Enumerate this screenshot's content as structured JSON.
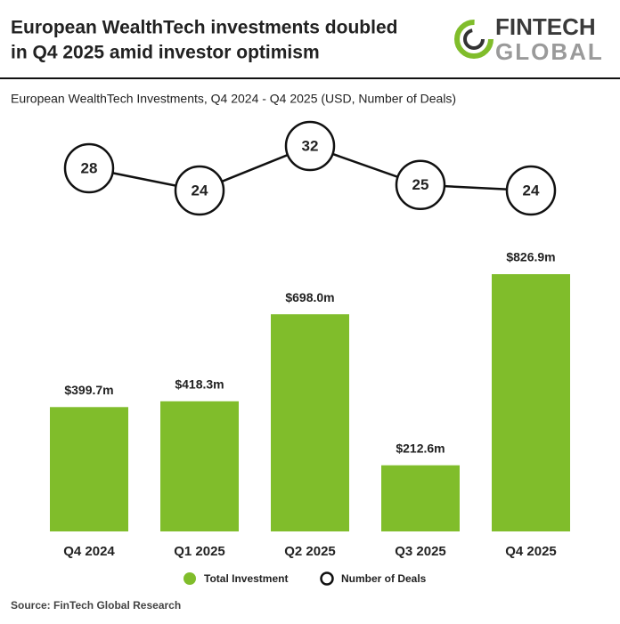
{
  "chart_data": {
    "type": "bar_line",
    "title": [
      "European WealthTech investments doubled",
      "in Q4 2025 amid investor optimism"
    ],
    "subtitle": "European WealthTech Investments, Q4 2024 - Q4 2025 (USD, Number of Deals)",
    "logo": {
      "line1": "FINTECH",
      "line2": "GLOBAL"
    },
    "source": "Source: FinTech Global Research",
    "categories": [
      "Q4 2024",
      "Q1 2025",
      "Q2 2025",
      "Q3 2025",
      "Q4 2025"
    ],
    "series": [
      {
        "name": "Total Investment",
        "type": "bar",
        "color": "#80bd2b",
        "values": [
          399.7,
          418.3,
          698.0,
          212.6,
          826.9
        ],
        "value_labels": [
          "$399.7m",
          "$418.3m",
          "$698.0m",
          "$212.6m",
          "$826.9m"
        ]
      },
      {
        "name": "Number of Deals",
        "type": "line",
        "color": "#111111",
        "values": [
          28,
          24,
          32,
          25,
          24
        ]
      }
    ]
  }
}
